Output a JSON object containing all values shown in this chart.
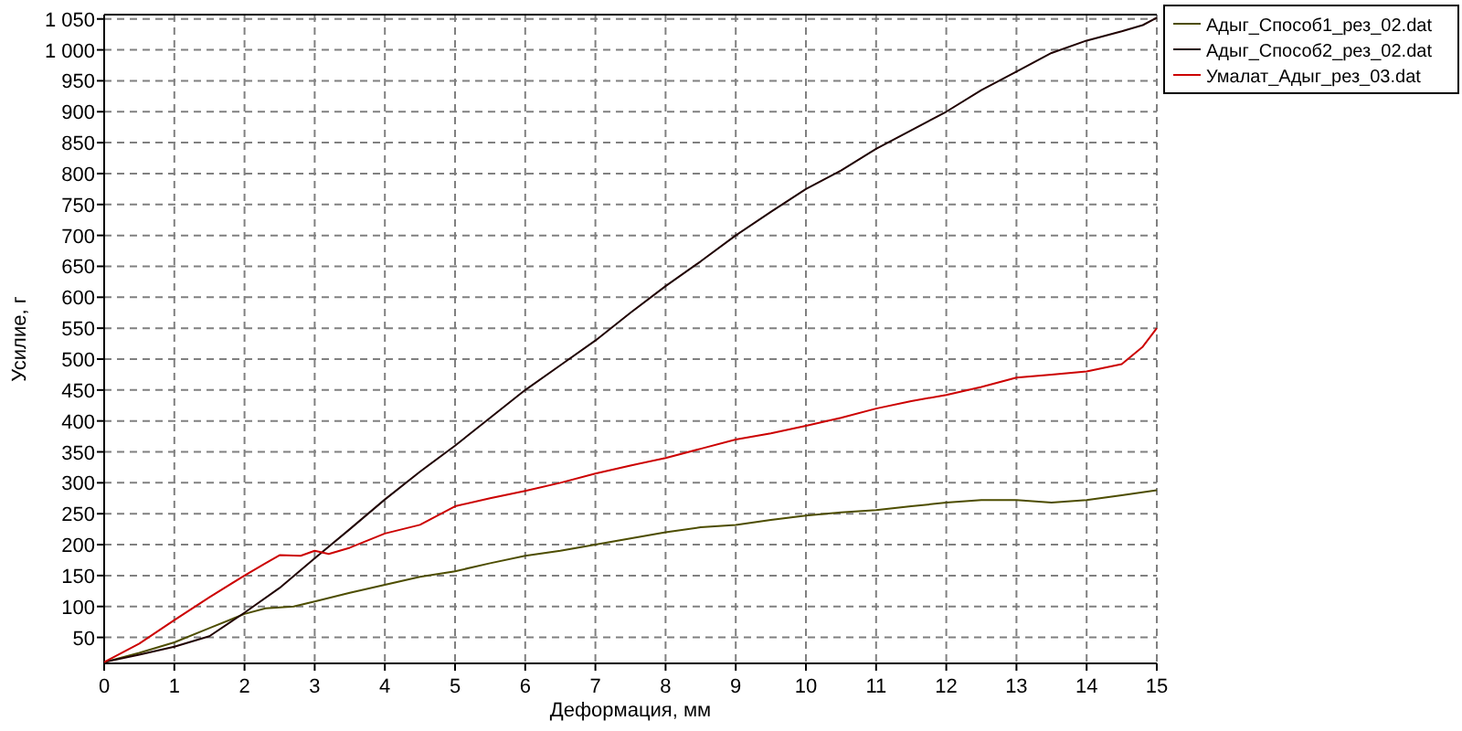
{
  "chart_data": {
    "type": "line",
    "xlabel": "Деформация, мм",
    "ylabel": "Усилие, г",
    "xlim": [
      0,
      15
    ],
    "xticks": [
      0,
      1,
      2,
      3,
      4,
      5,
      6,
      7,
      8,
      9,
      10,
      11,
      12,
      13,
      14,
      15
    ],
    "ylim": [
      8,
      1057
    ],
    "yticks": [
      50,
      100,
      150,
      200,
      250,
      300,
      350,
      400,
      450,
      500,
      550,
      600,
      650,
      700,
      750,
      800,
      850,
      900,
      950,
      {
        "value": 1000,
        "label": "1 000"
      },
      {
        "value": 1050,
        "label": "1 050"
      }
    ],
    "grid": true,
    "legend": "top right",
    "line_style": "solid",
    "series": [
      {
        "name": "Адыг_Способ1_рез_02.dat",
        "color": "#4d4d00",
        "x": [
          0,
          0.5,
          1,
          1.5,
          2,
          2.3,
          2.7,
          3,
          3.5,
          4,
          4.5,
          5,
          5.5,
          6,
          6.5,
          7,
          7.5,
          8,
          8.5,
          9,
          9.5,
          10,
          10.5,
          11,
          11.5,
          12,
          12.5,
          13,
          13.5,
          14,
          14.5,
          15
        ],
        "values": [
          10,
          25,
          42,
          65,
          88,
          97,
          100,
          108,
          122,
          135,
          148,
          157,
          170,
          182,
          190,
          200,
          210,
          220,
          228,
          232,
          240,
          247,
          252,
          256,
          262,
          268,
          272,
          272,
          268,
          272,
          280,
          288
        ]
      },
      {
        "name": "Адыг_Способ2_рез_02.dat",
        "color": "#200000",
        "x": [
          0,
          0.5,
          1,
          1.5,
          2,
          2.5,
          3,
          3.5,
          4,
          4.5,
          5,
          5.5,
          6,
          6.5,
          7,
          7.5,
          8,
          8.5,
          9,
          9.5,
          10,
          10.5,
          11,
          11.5,
          12,
          12.5,
          13,
          13.5,
          14,
          14.5,
          14.8,
          15
        ],
        "values": [
          10,
          22,
          35,
          52,
          90,
          130,
          178,
          225,
          273,
          318,
          360,
          405,
          450,
          490,
          530,
          575,
          618,
          658,
          700,
          738,
          775,
          805,
          840,
          870,
          900,
          935,
          965,
          995,
          1015,
          1030,
          1040,
          1052
        ]
      },
      {
        "name": "Умалат_Адыг_рез_03.dat",
        "color": "#cc0000",
        "x": [
          0,
          0.5,
          1,
          1.5,
          2,
          2.3,
          2.5,
          2.8,
          3,
          3.2,
          3.5,
          4,
          4.5,
          5,
          5.5,
          6,
          6.5,
          7,
          7.5,
          8,
          8.5,
          9,
          9.5,
          10,
          10.5,
          11,
          11.5,
          12,
          12.5,
          13,
          13.5,
          14,
          14.5,
          14.8,
          15
        ],
        "values": [
          10,
          40,
          78,
          115,
          150,
          170,
          183,
          182,
          190,
          185,
          195,
          218,
          232,
          262,
          275,
          287,
          300,
          315,
          328,
          340,
          355,
          370,
          380,
          392,
          405,
          420,
          432,
          442,
          455,
          470,
          475,
          480,
          492,
          520,
          550
        ]
      }
    ]
  }
}
